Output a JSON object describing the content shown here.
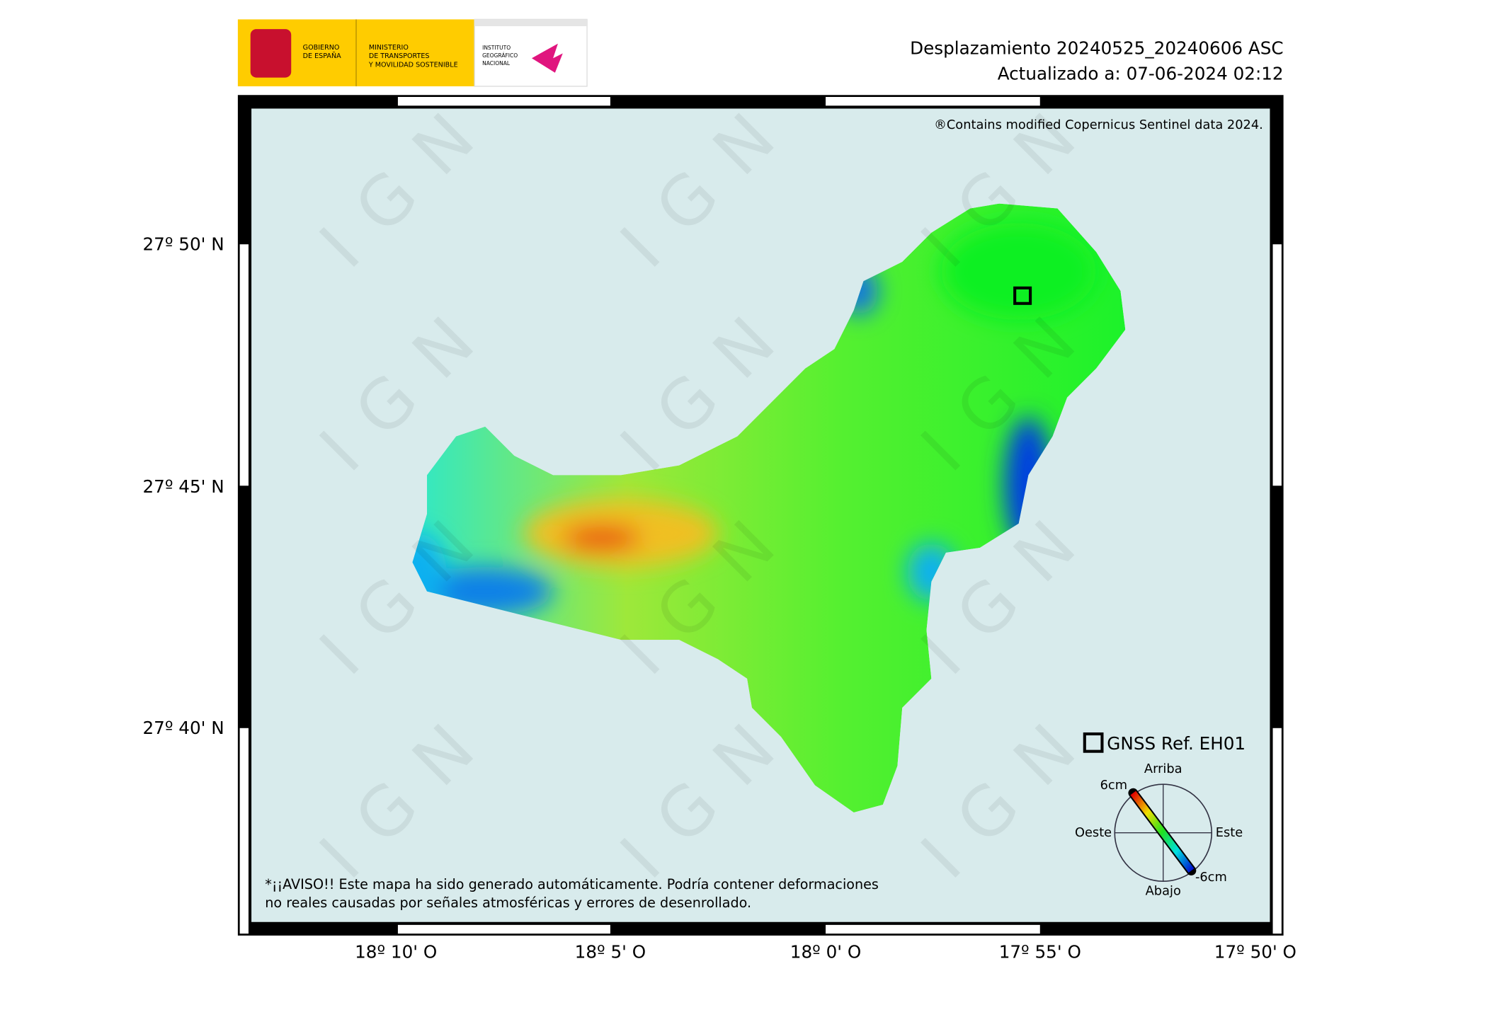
{
  "header": {
    "title": "Desplazamiento 20240525_20240606 ASC",
    "updated": "Actualizado a: 07-06-2024 02:12",
    "logo": {
      "gobierno": [
        "GOBIERNO",
        "DE ESPAÑA"
      ],
      "ministerio": [
        "MINISTERIO",
        "DE TRANSPORTES",
        "Y MOVILIDAD SOSTENIBLE"
      ],
      "instituto": [
        "INSTITUTO",
        "GEOGRÁFICO",
        "NACIONAL"
      ]
    }
  },
  "map": {
    "copyright": "®Contains modified Copernicus Sentinel data 2024.",
    "watermark": "IGN",
    "warning": [
      "*¡¡AVISO!! Este mapa ha sido generado automáticamente. Podría contener deformaciones",
      "no reales causadas por señales atmosféricas y errores de desenrollado."
    ],
    "lat_labels": [
      "27º 50' N",
      "27º 45' N",
      "27º 40' N"
    ],
    "lon_labels": [
      "18º 10' O",
      "18º 5' O",
      "18º 0' O",
      "17º 55' O",
      "17º 50' O"
    ],
    "gnss_label": "GNSS Ref. EH01",
    "legend": {
      "up": "Arriba",
      "down": "Abajo",
      "west": "Oeste",
      "east": "Este",
      "max": "6cm",
      "min": "-6cm"
    }
  }
}
